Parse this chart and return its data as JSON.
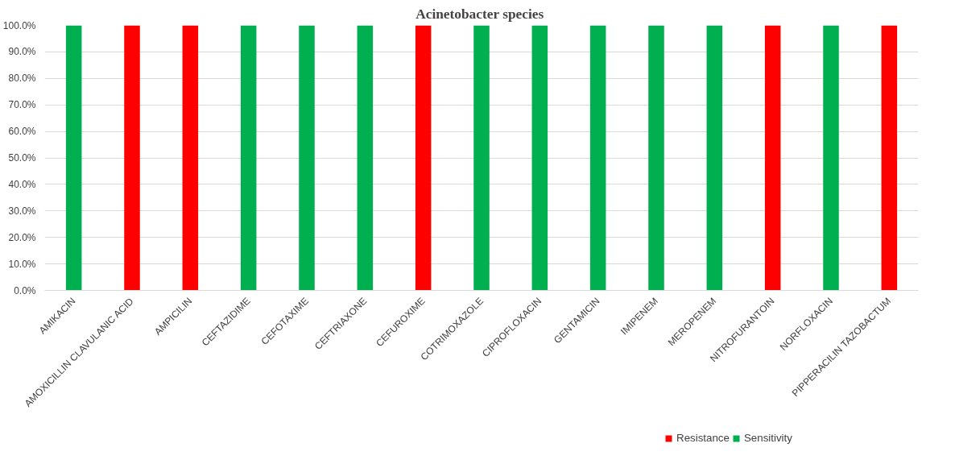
{
  "chart_data": {
    "type": "bar",
    "title": "Acinetobacter  species",
    "stacked": true,
    "categories": [
      "AMIKACIN",
      "AMOXICILLIN CLAVULANIC ACID",
      "AMPICILIN",
      "CEFTAZIDIME",
      "CEFOTAXIME",
      "CEFTRIAXONE",
      "CEFUROXIME",
      "COTRIMOXAZOLE",
      "CIPROFLOXACIN",
      "GENTAMICIN",
      "IMIPENEM",
      "MEROPENEM",
      "NITROFURANTOIN",
      "NORFLOXACIN",
      "PIPPERACILIN TAZOBACTUM"
    ],
    "series": [
      {
        "name": "Resistance",
        "color": "#ff0000",
        "values": [
          0,
          100,
          100,
          0,
          0,
          0,
          100,
          0,
          0,
          0,
          0,
          0,
          100,
          0,
          100
        ]
      },
      {
        "name": "Sensitivity",
        "color": "#00b050",
        "values": [
          100,
          0,
          0,
          100,
          100,
          100,
          0,
          100,
          100,
          100,
          100,
          100,
          0,
          100,
          0
        ]
      }
    ],
    "ylim": [
      0,
      100
    ],
    "yticks": [
      {
        "value": 0,
        "label": "0.0%"
      },
      {
        "value": 10,
        "label": "10.0%"
      },
      {
        "value": 20,
        "label": "20.0%"
      },
      {
        "value": 30,
        "label": "30.0%"
      },
      {
        "value": 40,
        "label": "40.0%"
      },
      {
        "value": 50,
        "label": "50.0%"
      },
      {
        "value": 60,
        "label": "60.0%"
      },
      {
        "value": 70,
        "label": "70.0%"
      },
      {
        "value": 80,
        "label": "80.0%"
      },
      {
        "value": 90,
        "label": "90.0%"
      },
      {
        "value": 100,
        "label": "100.0%"
      }
    ],
    "grid": "y",
    "legend": "bottom"
  }
}
